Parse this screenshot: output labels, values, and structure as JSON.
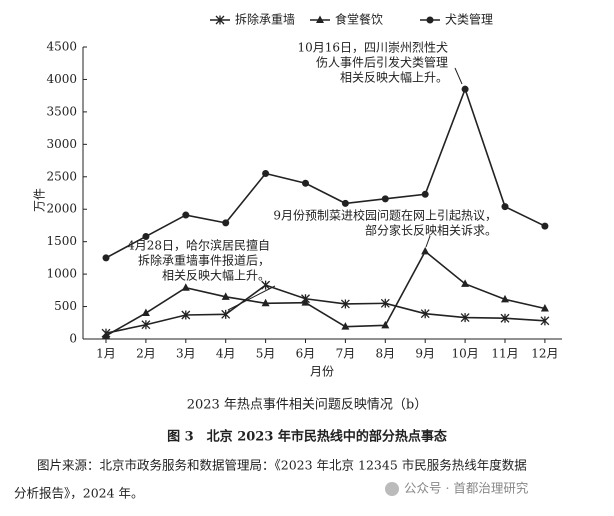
{
  "chart_data": {
    "type": "line",
    "y_label": "万件",
    "x_label": "月份",
    "categories": [
      "1月",
      "2月",
      "3月",
      "4月",
      "5月",
      "6月",
      "7月",
      "8月",
      "9月",
      "10月",
      "11月",
      "12月"
    ],
    "series": [
      {
        "name": "拆除承重墙",
        "marker": "star",
        "color": "#222222",
        "values": [
          90,
          220,
          370,
          380,
          830,
          620,
          540,
          550,
          390,
          330,
          320,
          280
        ]
      },
      {
        "name": "食堂餐饮",
        "marker": "triangle",
        "color": "#222222",
        "values": [
          50,
          400,
          790,
          650,
          550,
          560,
          190,
          210,
          1350,
          850,
          610,
          470
        ]
      },
      {
        "name": "犬类管理",
        "marker": "circle",
        "color": "#222222",
        "values": [
          1250,
          1580,
          1910,
          1790,
          2550,
          2400,
          2090,
          2160,
          2230,
          3850,
          2040,
          1740
        ]
      }
    ],
    "ylim": [
      0,
      4500
    ],
    "yticks": [
      0,
      500,
      1000,
      1500,
      2000,
      2500,
      3000,
      3500,
      4000,
      4500
    ],
    "legend": "top",
    "annotations": [
      {
        "lines": [
          "10月16日，四川崇州烈性犬",
          "伤人事件后引发犬类管理",
          "相关反映大幅上升。"
        ]
      },
      {
        "lines": [
          "9月份预制菜进校园问题在网上引起热议，",
          "部分家长反映相关诉求。"
        ]
      },
      {
        "lines": [
          "4月28日，哈尔滨居民擅自",
          "拆除承重墙事件报道后，",
          "相关反映大幅上升。"
        ]
      }
    ],
    "caption": "2023 年热点事件相关问题反映情况（b）"
  },
  "figure_title": "图 3　北京 2023 年市民热线中的部分热点事态",
  "source": [
    "图片来源：北京市政务服务和数据管理局：《2023 年北京 12345 市民服务热线年度数据",
    "分析报告》，2024 年。"
  ],
  "watermark": "公众号 · 首都治理研究"
}
